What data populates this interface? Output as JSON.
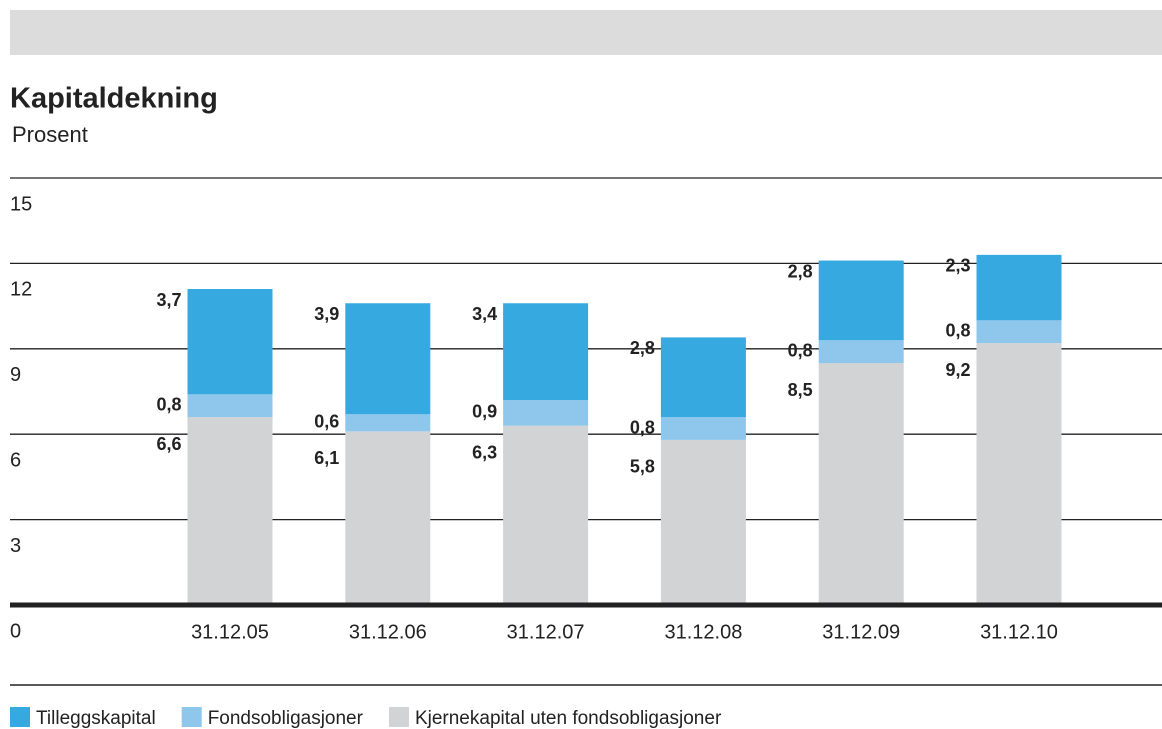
{
  "chart_data": {
    "type": "stacked-bar",
    "title": "Kapitaldekning",
    "subtitle": "Prosent",
    "categories": [
      "31.12.05",
      "31.12.06",
      "31.12.07",
      "31.12.08",
      "31.12.09",
      "31.12.10"
    ],
    "series": [
      {
        "name": "Tilleggskapital",
        "color": "#35a9e0",
        "values": [
          3.7,
          3.9,
          3.4,
          2.8,
          2.8,
          2.3
        ],
        "value_labels": [
          "3,7",
          "3,9",
          "3,4",
          "2,8",
          "2,8",
          "2,3"
        ]
      },
      {
        "name": "Fondsobligasjoner",
        "color": "#8ec6ec",
        "values": [
          0.8,
          0.6,
          0.9,
          0.8,
          0.8,
          0.8
        ],
        "value_labels": [
          "0,8",
          "0,6",
          "0,9",
          "0,8",
          "0,8",
          "0,8"
        ]
      },
      {
        "name": "Kjernekapital uten fondsobligasjoner",
        "color": "#d2d3d5",
        "values": [
          6.6,
          6.1,
          6.3,
          5.8,
          8.5,
          9.2
        ],
        "value_labels": [
          "6,6",
          "6,1",
          "6,3",
          "5,8",
          "8,5",
          "9,2"
        ]
      }
    ],
    "ylim": [
      0,
      15
    ],
    "yticks": [
      0,
      3,
      6,
      9,
      12,
      15
    ],
    "grid": true
  }
}
